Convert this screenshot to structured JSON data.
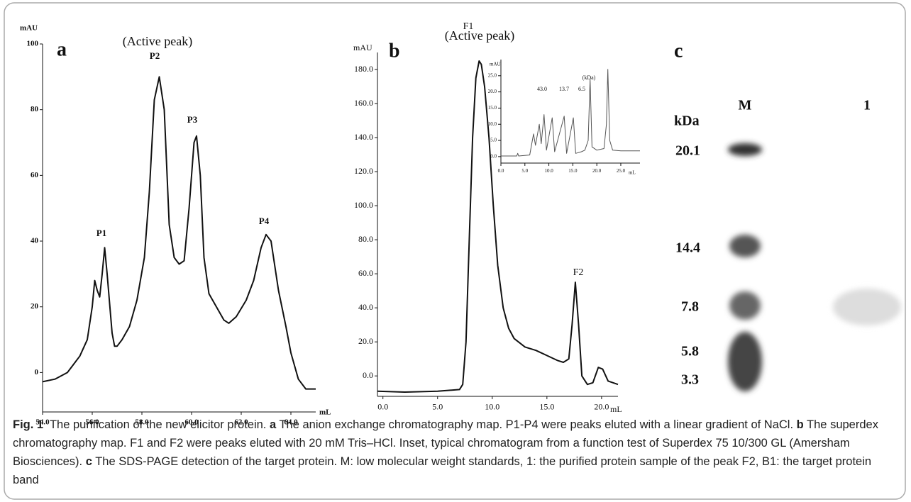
{
  "chart_data": [
    {
      "type": "line",
      "panel": "a",
      "title": "(Active peak)",
      "ylabel": "mAU",
      "xlabel": "mL",
      "x": [
        54.0,
        54.5,
        55.0,
        55.5,
        55.8,
        56.0,
        56.1,
        56.2,
        56.3,
        56.4,
        56.5,
        56.6,
        56.8,
        56.9,
        57.0,
        57.2,
        57.5,
        57.8,
        58.1,
        58.3,
        58.5,
        58.7,
        58.9,
        59.1,
        59.3,
        59.5,
        59.7,
        59.9,
        60.1,
        60.2,
        60.35,
        60.5,
        60.7,
        61.0,
        61.3,
        61.5,
        61.8,
        62.2,
        62.5,
        62.8,
        63.0,
        63.2,
        63.5,
        63.8,
        64.0,
        64.3,
        64.6,
        65.0
      ],
      "values": [
        -2.8,
        -2,
        0,
        5,
        10,
        20,
        28,
        25,
        23,
        30,
        38,
        30,
        12,
        8,
        8,
        10,
        14,
        22,
        35,
        55,
        83,
        90,
        80,
        45,
        35,
        33,
        34,
        50,
        70,
        72,
        60,
        35,
        24,
        20,
        16,
        15,
        17,
        22,
        28,
        38,
        42,
        40,
        25,
        14,
        6,
        -2,
        -5,
        -5
      ],
      "color": "#111111",
      "annotations": [
        "P1",
        "P2",
        "P3",
        "P4"
      ],
      "xlim": [
        54,
        65
      ],
      "ylim": [
        -12,
        100
      ],
      "xticks": [
        {
          "value": 54,
          "label": "54.0"
        },
        {
          "value": 56,
          "label": "56.0"
        },
        {
          "value": 58,
          "label": "58.0"
        },
        {
          "value": 60,
          "label": "60.0"
        },
        {
          "value": 62,
          "label": "62.0"
        },
        {
          "value": 64,
          "label": "64.0"
        }
      ],
      "yticks": [
        0,
        20,
        40,
        60,
        80,
        100
      ]
    },
    {
      "type": "line",
      "panel": "b",
      "title": "(Active peak)",
      "ylabel": "mAU",
      "xlabel": "mL",
      "x": [
        -0.5,
        2,
        5,
        7,
        7.3,
        7.6,
        7.9,
        8.2,
        8.5,
        8.8,
        9.0,
        9.3,
        9.7,
        10.1,
        10.5,
        11,
        11.5,
        12,
        13,
        14,
        15,
        16,
        16.5,
        17,
        17.3,
        17.6,
        17.9,
        18.2,
        18.7,
        19.2,
        19.7,
        20.1,
        20.6,
        21.5
      ],
      "values": [
        -9,
        -9.5,
        -9,
        -8,
        -5,
        20,
        80,
        140,
        175,
        185,
        183,
        170,
        140,
        100,
        65,
        40,
        28,
        22,
        17,
        15,
        12,
        9,
        8,
        10,
        30,
        55,
        30,
        0,
        -5,
        -4,
        5,
        4,
        -3,
        -5
      ],
      "color": "#111111",
      "annotations": [
        "F1",
        "F2"
      ],
      "xlim": [
        -0.5,
        21.5
      ],
      "ylim": [
        -12,
        190
      ],
      "xticks": [
        {
          "value": 0,
          "label": "0.0"
        },
        {
          "value": 5,
          "label": "5.0"
        },
        {
          "value": 10,
          "label": "10.0"
        },
        {
          "value": 15,
          "label": "15.0"
        },
        {
          "value": 20,
          "label": "20.0"
        }
      ],
      "yticks": [
        {
          "value": 0,
          "label": "0.0"
        },
        {
          "value": 20,
          "label": "20.0"
        },
        {
          "value": 40,
          "label": "40.0"
        },
        {
          "value": 60,
          "label": "60.0"
        },
        {
          "value": 80,
          "label": "80.0"
        },
        {
          "value": 100,
          "label": "100.0"
        },
        {
          "value": 120,
          "label": "120.0"
        },
        {
          "value": 140,
          "label": "140.0"
        },
        {
          "value": 160,
          "label": "160.0"
        },
        {
          "value": 180,
          "label": "180.0"
        }
      ]
    },
    {
      "type": "line",
      "ylabel": "mAU",
      "xlabel": "mL",
      "x": [
        0,
        3.3,
        3.5,
        3.7,
        6,
        6.8,
        7.2,
        8.0,
        8.4,
        9.0,
        9.5,
        10.7,
        11.2,
        13.2,
        13.7,
        15.1,
        15.6,
        16.8,
        17.5,
        18.2,
        18.6,
        19.0,
        20,
        21.5,
        22.0,
        22.3,
        22.7,
        23.3,
        25,
        29
      ],
      "values": [
        0.2,
        0.2,
        1,
        0.2,
        0.5,
        7,
        3.5,
        10,
        4,
        13,
        2,
        12,
        1.5,
        12.5,
        1,
        12,
        1,
        1.5,
        2,
        5,
        24,
        3,
        2,
        2.5,
        10,
        27,
        5,
        2,
        1.8,
        1.8
      ],
      "color": "#555555",
      "annotations": [
        "43.0",
        "13.7",
        "6.5",
        "(kDa)"
      ],
      "xlim": [
        0,
        29
      ],
      "ylim": [
        -2,
        30
      ],
      "xticks": [
        {
          "value": 0,
          "label": "0.0"
        },
        {
          "value": 5,
          "label": "5.0"
        },
        {
          "value": 10,
          "label": "10.0"
        },
        {
          "value": 15,
          "label": "15.0"
        },
        {
          "value": 20,
          "label": "20.0"
        },
        {
          "value": 25,
          "label": "25.0"
        }
      ],
      "yticks": [
        {
          "value": 0,
          "label": "0.0"
        },
        {
          "value": 5,
          "label": "5.0"
        },
        {
          "value": 10,
          "label": "10.0"
        },
        {
          "value": 15,
          "label": "15.0"
        },
        {
          "value": 20,
          "label": "20.0"
        },
        {
          "value": 25,
          "label": "25.0"
        }
      ]
    }
  ],
  "gel": {
    "panel": "c",
    "unit": "kDa",
    "lanes": [
      "M",
      "1"
    ],
    "markers": [
      "20.1",
      "14.4",
      "7.8",
      "5.8",
      "3.3"
    ]
  },
  "caption": {
    "figure": "Fig. 1",
    "lead": "The purification of the new elicitor protein.",
    "parts": [
      {
        "label": "a",
        "text": "The anion exchange chromatography map. P1-P4 were peaks eluted with a linear gradient of NaCl."
      },
      {
        "label": "b",
        "text": "The superdex chromatography map. F1 and F2 were peaks eluted with 20 mM Tris–HCl. Inset, typical chromatogram from a function test of Superdex 75 10/300 GL (Amersham Biosciences)."
      },
      {
        "label": "c",
        "text": "The SDS-PAGE detection of the target protein. M: low molecular weight standards, 1: the purified protein sample of the peak F2, B1: the target protein band"
      }
    ]
  }
}
